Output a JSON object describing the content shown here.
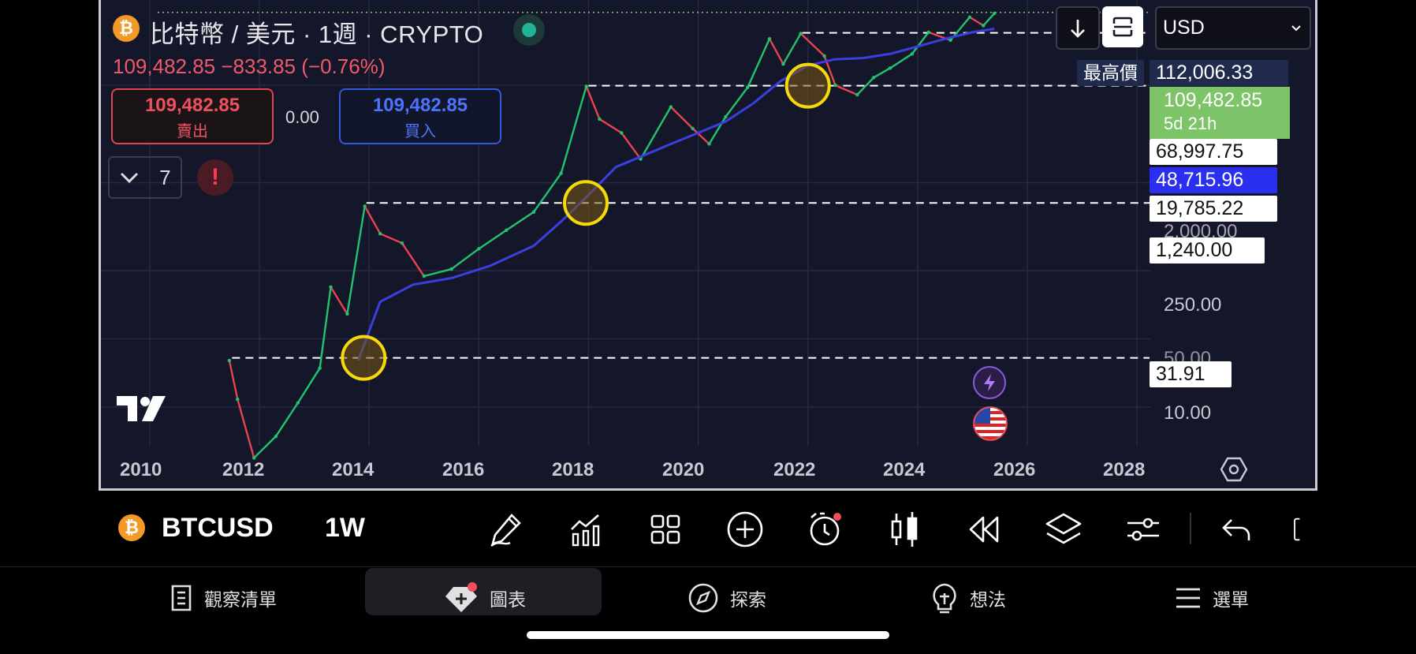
{
  "header": {
    "title": "比特幣 / 美元 · 1週 · CRYPTO",
    "quote": "109,482.85 −833.85 (−0.76%)",
    "coin_symbol": "₿"
  },
  "trade": {
    "sell_price": "109,482.85",
    "sell_label": "賣出",
    "spread": "0.00",
    "buy_price": "109,482.85",
    "buy_label": "買入"
  },
  "indicators": {
    "count": "7",
    "warning": "!"
  },
  "top_controls": {
    "currency": "USD"
  },
  "price_scale": {
    "high_label": "最高價",
    "high_value": "112,006.33",
    "current_value": "109,482.85",
    "countdown": "5d 21h",
    "levels": [
      "68,997.75",
      "48,715.96",
      "19,785.22",
      "1,240.00",
      "31.91"
    ],
    "ticks": [
      "2,000.00",
      "250.00",
      "50.00",
      "10.00"
    ]
  },
  "x_axis": {
    "ticks": [
      "2010",
      "2012",
      "2014",
      "2016",
      "2018",
      "2020",
      "2022",
      "2024",
      "2026",
      "2028"
    ]
  },
  "chart_data": {
    "type": "line",
    "symbol": "BTCUSD",
    "interval": "1W",
    "y_scale": "log",
    "ylim": [
      4,
      150000
    ],
    "xlim": [
      2010,
      2028.2
    ],
    "horizontal_levels": [
      112006.33,
      68997.75,
      48715.96,
      19785.22,
      1240.0,
      31.91
    ],
    "series": [
      {
        "values": [
          [
            2011.45,
            30
          ],
          [
            2011.6,
            12
          ],
          [
            2011.9,
            3
          ],
          [
            2012.3,
            5
          ],
          [
            2012.7,
            11
          ],
          [
            2013.1,
            25
          ],
          [
            2013.3,
            170
          ],
          [
            2013.6,
            90
          ],
          [
            2013.92,
            1150
          ],
          [
            2014.2,
            600
          ],
          [
            2014.6,
            480
          ],
          [
            2015.0,
            220
          ],
          [
            2015.5,
            260
          ],
          [
            2016.0,
            420
          ],
          [
            2016.5,
            650
          ],
          [
            2017.0,
            1000
          ],
          [
            2017.5,
            2500
          ],
          [
            2017.96,
            19500
          ],
          [
            2018.2,
            9000
          ],
          [
            2018.6,
            6500
          ],
          [
            2018.95,
            3500
          ],
          [
            2019.5,
            12000
          ],
          [
            2019.9,
            7200
          ],
          [
            2020.2,
            5000
          ],
          [
            2020.5,
            9500
          ],
          [
            2020.9,
            19000
          ],
          [
            2021.3,
            60000
          ],
          [
            2021.55,
            33000
          ],
          [
            2021.87,
            68000
          ],
          [
            2022.3,
            40000
          ],
          [
            2022.5,
            20000
          ],
          [
            2022.9,
            16000
          ],
          [
            2023.2,
            24000
          ],
          [
            2023.5,
            30000
          ],
          [
            2023.9,
            42000
          ],
          [
            2024.2,
            70000
          ],
          [
            2024.6,
            58000
          ],
          [
            2024.95,
            100000
          ],
          [
            2025.2,
            82000
          ],
          [
            2025.4,
            109482
          ]
        ]
      },
      {
        "values": [
          [
            2013.8,
            30
          ],
          [
            2014.2,
            120
          ],
          [
            2014.8,
            180
          ],
          [
            2015.5,
            210
          ],
          [
            2016.2,
            280
          ],
          [
            2017.0,
            450
          ],
          [
            2017.5,
            800
          ],
          [
            2018.0,
            1500
          ],
          [
            2018.5,
            2900
          ],
          [
            2019.0,
            3800
          ],
          [
            2019.5,
            5000
          ],
          [
            2020.0,
            6500
          ],
          [
            2020.5,
            8500
          ],
          [
            2021.0,
            13000
          ],
          [
            2021.5,
            22000
          ],
          [
            2022.0,
            32000
          ],
          [
            2022.5,
            37000
          ],
          [
            2023.0,
            38000
          ],
          [
            2023.5,
            42000
          ],
          [
            2024.0,
            50000
          ],
          [
            2024.5,
            60000
          ],
          [
            2025.0,
            70000
          ],
          [
            2025.4,
            76000
          ]
        ]
      }
    ],
    "circled_points": [
      [
        2013.9,
        31.91
      ],
      [
        2017.95,
        1240.0
      ],
      [
        2022.0,
        19785.22
      ]
    ]
  },
  "toolbar": {
    "symbol": "BTCUSD",
    "interval": "1W"
  },
  "nav": {
    "items": [
      {
        "label": "觀察清單",
        "icon": "watchlist-icon"
      },
      {
        "label": "圖表",
        "icon": "chart-icon"
      },
      {
        "label": "探索",
        "icon": "compass-icon"
      },
      {
        "label": "想法",
        "icon": "ideas-icon"
      },
      {
        "label": "選單",
        "icon": "menu-icon"
      }
    ]
  },
  "colors": {
    "background": "#14162a",
    "sell": "#f0505e",
    "buy": "#4c74ff",
    "ma": "#3a3fe0",
    "up": "#22c36d",
    "down": "#e8434f",
    "current": "#7cc467",
    "circle": "#f5d90a"
  }
}
